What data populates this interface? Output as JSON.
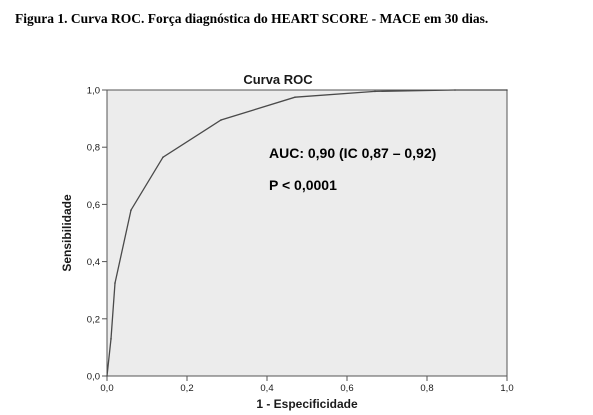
{
  "caption": "Figura 1. Curva ROC. Força diagnóstica do HEART SCORE - MACE em 30 dias.",
  "chart_data": {
    "type": "line",
    "title": "Curva ROC",
    "xlabel": "1 - Especificidade",
    "ylabel": "Sensibilidade",
    "xlim": [
      0,
      1
    ],
    "ylim": [
      0,
      1
    ],
    "x_ticks": [
      "0,0",
      "0,2",
      "0,4",
      "0,6",
      "0,8",
      "1,0"
    ],
    "y_ticks": [
      "0,0",
      "0,2",
      "0,4",
      "0,6",
      "0,8",
      "1,0"
    ],
    "grid": false,
    "series": [
      {
        "x": [
          0.0,
          0.01,
          0.02,
          0.06,
          0.14,
          0.285,
          0.47,
          0.67,
          0.87,
          1.0
        ],
        "y": [
          0.0,
          0.13,
          0.325,
          0.58,
          0.765,
          0.895,
          0.975,
          0.995,
          1.0,
          1.0
        ]
      }
    ],
    "annotations": [
      "AUC: 0,90 (IC 0,87 – 0,92)",
      "P < 0,0001"
    ],
    "colors": {
      "plot_background": "#ececec",
      "line": "#4a4a4a",
      "axis": "#555555"
    }
  }
}
